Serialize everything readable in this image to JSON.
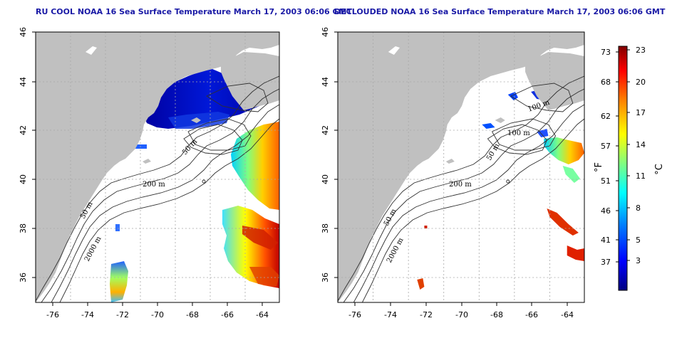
{
  "panels": [
    {
      "title": "RU COOL NOAA 16 Sea Surface Temperature March 17, 2003 06:06 GMT",
      "contour_labels": [
        "50 m",
        "200 m",
        "50 m",
        "2000 m"
      ]
    },
    {
      "title": "DECLOUDED NOAA 16 Sea Surface Temperature March 17, 2003 06:06 GMT",
      "contour_labels": [
        "100 m",
        "100 m",
        "50 m",
        "200 m",
        "50 m",
        "2000 m"
      ]
    }
  ],
  "axes": {
    "lat_ticks": [
      "46",
      "44",
      "42",
      "40",
      "38",
      "36"
    ],
    "lon_ticks": [
      "-76",
      "-74",
      "-72",
      "-70",
      "-68",
      "-66",
      "-64"
    ],
    "grid": true
  },
  "colorbar": {
    "fahrenheit_ticks": [
      "73",
      "68",
      "62",
      "57",
      "51",
      "46",
      "41",
      "37"
    ],
    "celsius_ticks": [
      "23",
      "20",
      "17",
      "14",
      "11",
      "8",
      "5",
      "3"
    ],
    "f_label": "°F",
    "c_label": "°C",
    "colors": [
      "#000080",
      "#0000ff",
      "#0080ff",
      "#00ffff",
      "#80ff80",
      "#ffff00",
      "#ff8000",
      "#ff0000",
      "#800000"
    ]
  },
  "colors": {
    "land": "#c0c0c0",
    "title": "#1a1aa6",
    "ocean": "#ffffff"
  }
}
